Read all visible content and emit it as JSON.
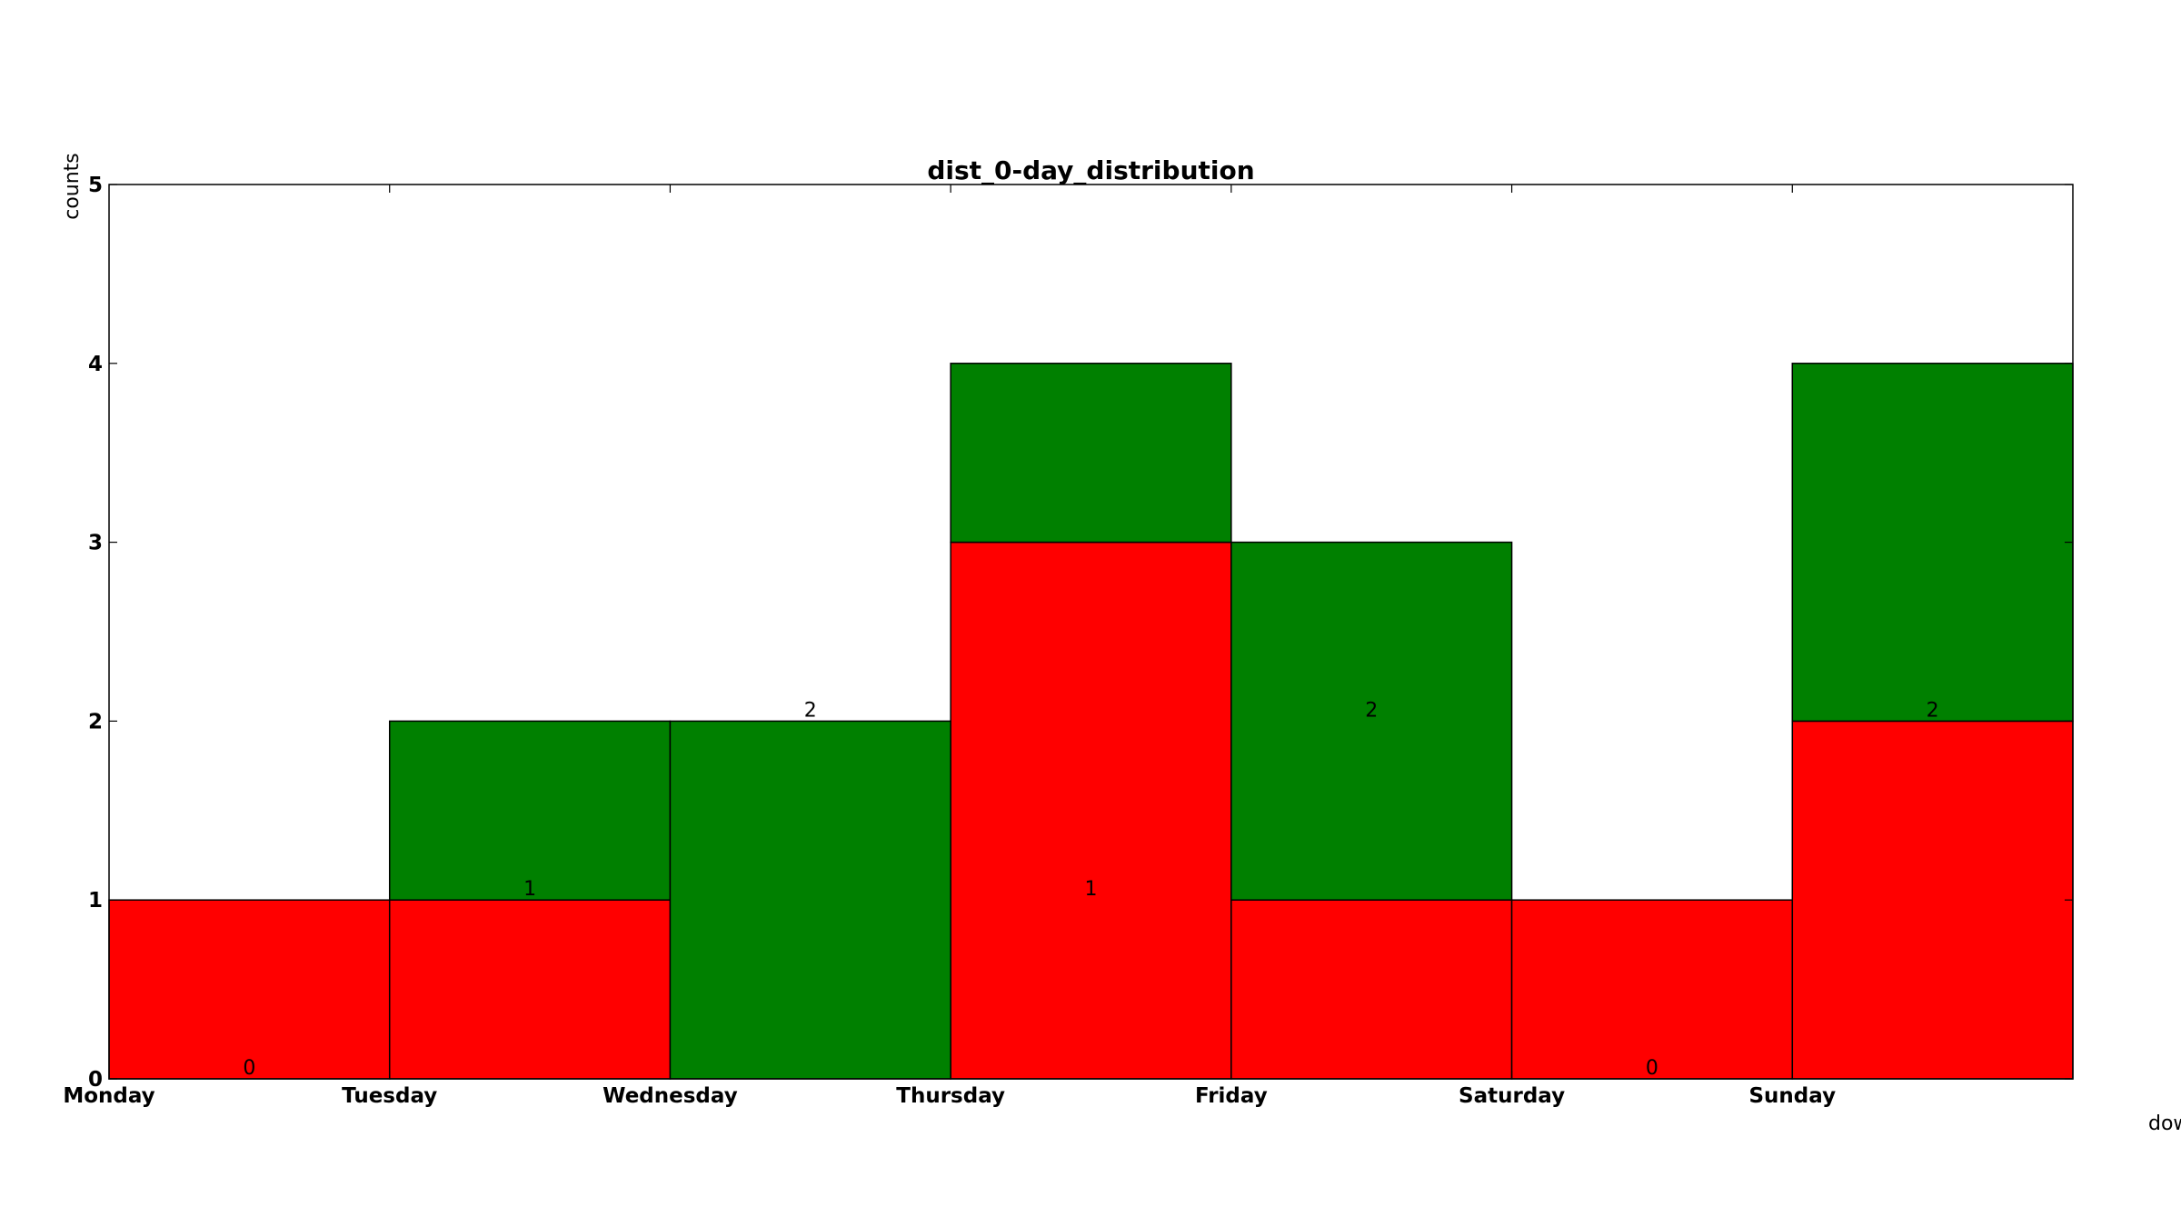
{
  "chart_data": {
    "type": "bar",
    "stacked": true,
    "title": "dist_0-day_distribution",
    "xlabel": "dow",
    "ylabel": "counts",
    "categories": [
      "Monday",
      "Tuesday",
      "Wednesday",
      "Thursday",
      "Friday",
      "Saturday",
      "Sunday"
    ],
    "series": [
      {
        "values": [
          1,
          1,
          0,
          3,
          1,
          1,
          2
        ],
        "color": "#ff0000"
      },
      {
        "values": [
          0,
          1,
          2,
          1,
          2,
          0,
          2
        ],
        "color": "#008000"
      }
    ],
    "data_labels": [
      0,
      1,
      2,
      1,
      2,
      0,
      2
    ],
    "ylim": [
      0,
      5
    ],
    "yticks": [
      0,
      1,
      2,
      3,
      4,
      5
    ],
    "grid": false,
    "legend": "none"
  }
}
